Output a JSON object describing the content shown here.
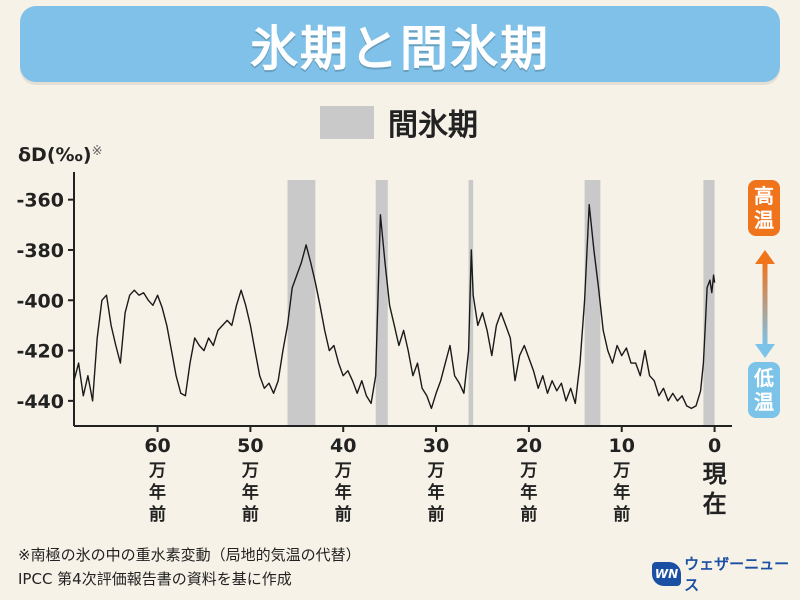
{
  "header": {
    "title": "氷期と間氷期"
  },
  "legend": {
    "label": "間氷期",
    "color": "#c9c9c9"
  },
  "y_axis": {
    "label": "δD(‰)",
    "note": "※"
  },
  "temperature": {
    "high": "高温",
    "low": "低温",
    "high_color": "#f0741c",
    "low_color": "#7cc3ea"
  },
  "chart_data": {
    "type": "line",
    "title": "",
    "ylabel": "δD(‰)",
    "xlabel": "",
    "ylim": [
      -450,
      -349
    ],
    "xlim": [
      69,
      -0.8
    ],
    "y_ticks": [
      -360,
      -380,
      -400,
      -420,
      -440
    ],
    "x_ticks": [
      {
        "value": 60,
        "label": "60",
        "unit": "万年前"
      },
      {
        "value": 50,
        "label": "50",
        "unit": "万年前"
      },
      {
        "value": 40,
        "label": "40",
        "unit": "万年前"
      },
      {
        "value": 30,
        "label": "30",
        "unit": "万年前"
      },
      {
        "value": 20,
        "label": "20",
        "unit": "万年前"
      },
      {
        "value": 10,
        "label": "10",
        "unit": "万年前"
      },
      {
        "value": 0,
        "label": "0",
        "unit": "現在"
      }
    ],
    "interglacials": [
      [
        46,
        43
      ],
      [
        36.5,
        35.2
      ],
      [
        26.5,
        26
      ],
      [
        14,
        12.3
      ],
      [
        1.2,
        0
      ]
    ],
    "series": [
      {
        "values": [
          [
            69,
            -432
          ],
          [
            68.5,
            -425
          ],
          [
            68,
            -438
          ],
          [
            67.5,
            -430
          ],
          [
            67,
            -440
          ],
          [
            66.5,
            -415
          ],
          [
            66,
            -400
          ],
          [
            65.5,
            -398
          ],
          [
            65,
            -410
          ],
          [
            64.5,
            -418
          ],
          [
            64,
            -425
          ],
          [
            63.5,
            -405
          ],
          [
            63,
            -398
          ],
          [
            62.5,
            -396
          ],
          [
            62,
            -398
          ],
          [
            61.5,
            -397
          ],
          [
            61,
            -400
          ],
          [
            60.5,
            -402
          ],
          [
            60,
            -398
          ],
          [
            59.5,
            -403
          ],
          [
            59,
            -410
          ],
          [
            58.5,
            -420
          ],
          [
            58,
            -430
          ],
          [
            57.5,
            -437
          ],
          [
            57,
            -438
          ],
          [
            56.5,
            -425
          ],
          [
            56,
            -415
          ],
          [
            55.5,
            -418
          ],
          [
            55,
            -420
          ],
          [
            54.5,
            -415
          ],
          [
            54,
            -418
          ],
          [
            53.5,
            -412
          ],
          [
            53,
            -410
          ],
          [
            52.5,
            -408
          ],
          [
            52,
            -410
          ],
          [
            51.5,
            -402
          ],
          [
            51,
            -396
          ],
          [
            50.5,
            -402
          ],
          [
            50,
            -410
          ],
          [
            49.5,
            -420
          ],
          [
            49,
            -430
          ],
          [
            48.5,
            -435
          ],
          [
            48,
            -433
          ],
          [
            47.5,
            -437
          ],
          [
            47,
            -432
          ],
          [
            46.5,
            -420
          ],
          [
            46,
            -410
          ],
          [
            45.5,
            -395
          ],
          [
            45,
            -390
          ],
          [
            44.5,
            -385
          ],
          [
            44,
            -378
          ],
          [
            43.5,
            -385
          ],
          [
            43,
            -393
          ],
          [
            42.5,
            -402
          ],
          [
            42,
            -412
          ],
          [
            41.5,
            -420
          ],
          [
            41,
            -418
          ],
          [
            40.5,
            -425
          ],
          [
            40,
            -430
          ],
          [
            39.5,
            -428
          ],
          [
            39,
            -432
          ],
          [
            38.5,
            -437
          ],
          [
            38,
            -432
          ],
          [
            37.5,
            -438
          ],
          [
            37,
            -441
          ],
          [
            36.5,
            -430
          ],
          [
            36,
            -366
          ],
          [
            35.5,
            -385
          ],
          [
            35,
            -402
          ],
          [
            34.5,
            -410
          ],
          [
            34,
            -418
          ],
          [
            33.5,
            -412
          ],
          [
            33,
            -420
          ],
          [
            32.5,
            -430
          ],
          [
            32,
            -425
          ],
          [
            31.5,
            -435
          ],
          [
            31,
            -438
          ],
          [
            30.5,
            -443
          ],
          [
            30,
            -437
          ],
          [
            29.5,
            -432
          ],
          [
            29,
            -425
          ],
          [
            28.5,
            -418
          ],
          [
            28,
            -430
          ],
          [
            27.5,
            -433
          ],
          [
            27,
            -437
          ],
          [
            26.5,
            -420
          ],
          [
            26.2,
            -380
          ],
          [
            26,
            -398
          ],
          [
            25.5,
            -410
          ],
          [
            25,
            -405
          ],
          [
            24.5,
            -412
          ],
          [
            24,
            -422
          ],
          [
            23.5,
            -410
          ],
          [
            23,
            -405
          ],
          [
            22.5,
            -410
          ],
          [
            22,
            -415
          ],
          [
            21.5,
            -432
          ],
          [
            21,
            -422
          ],
          [
            20.5,
            -418
          ],
          [
            20,
            -423
          ],
          [
            19.5,
            -428
          ],
          [
            19,
            -435
          ],
          [
            18.5,
            -430
          ],
          [
            18,
            -437
          ],
          [
            17.5,
            -432
          ],
          [
            17,
            -436
          ],
          [
            16.5,
            -433
          ],
          [
            16,
            -440
          ],
          [
            15.5,
            -435
          ],
          [
            15,
            -441
          ],
          [
            14.5,
            -425
          ],
          [
            14,
            -400
          ],
          [
            13.5,
            -362
          ],
          [
            13,
            -380
          ],
          [
            12.5,
            -395
          ],
          [
            12,
            -412
          ],
          [
            11.5,
            -420
          ],
          [
            11,
            -425
          ],
          [
            10.5,
            -418
          ],
          [
            10,
            -422
          ],
          [
            9.5,
            -419
          ],
          [
            9,
            -425
          ],
          [
            8.5,
            -425
          ],
          [
            8,
            -430
          ],
          [
            7.5,
            -420
          ],
          [
            7,
            -430
          ],
          [
            6.5,
            -432
          ],
          [
            6,
            -438
          ],
          [
            5.5,
            -435
          ],
          [
            5,
            -440
          ],
          [
            4.5,
            -437
          ],
          [
            4,
            -440
          ],
          [
            3.5,
            -438
          ],
          [
            3,
            -442
          ],
          [
            2.5,
            -443
          ],
          [
            2,
            -442
          ],
          [
            1.5,
            -436
          ],
          [
            1.2,
            -425
          ],
          [
            1,
            -410
          ],
          [
            0.8,
            -395
          ],
          [
            0.5,
            -392
          ],
          [
            0.3,
            -397
          ],
          [
            0.1,
            -390
          ],
          [
            0,
            -393
          ]
        ]
      }
    ]
  },
  "footnotes": {
    "line1": "※南極の氷の中の重水素変動（局地的気温の代替）",
    "line2": "IPCC 第4次評価報告書の資料を基に作成"
  },
  "logo": {
    "mark": "WN",
    "text": "ウェザーニュース"
  }
}
